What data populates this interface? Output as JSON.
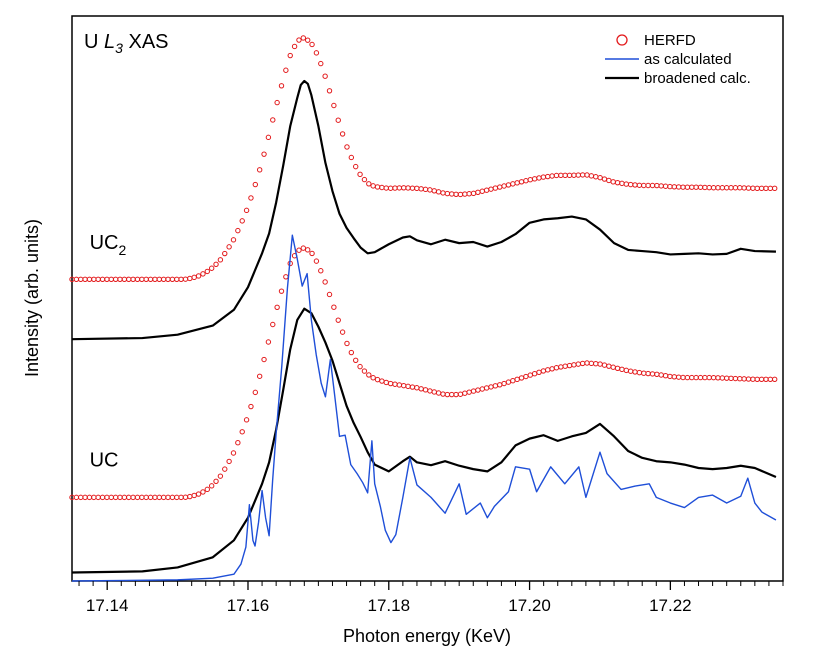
{
  "chart_data": {
    "type": "line",
    "title": {
      "prefix": "U ",
      "italic": "L",
      "sub": "3",
      "suffix": " XAS"
    },
    "xlabel": "Photon energy (KeV)",
    "ylabel": "Intensity (arb. units)",
    "xlim": [
      17.135,
      17.236
    ],
    "ylim": [
      0,
      10
    ],
    "x_ticks": [
      17.14,
      17.16,
      17.18,
      17.2,
      17.22
    ],
    "x_tick_labels": [
      "17.14",
      "17.16",
      "17.18",
      "17.20",
      "17.22"
    ],
    "minor_tick_step": 0.002,
    "y_ticks_shown": false,
    "grid": false,
    "legend": {
      "position": "top-right",
      "entries": [
        {
          "label": "HERFD",
          "style": "open-circle",
          "color": "#e31a1c"
        },
        {
          "label": "as calculated",
          "style": "line",
          "color": "#1f4fd8"
        },
        {
          "label": "broadened calc.",
          "style": "line",
          "color": "#000000"
        }
      ]
    },
    "annotations": [
      {
        "id": "uc2",
        "text": "UC",
        "sub": "2",
        "x": 17.1375,
        "y": 6.0
      },
      {
        "id": "uc",
        "text": "UC",
        "sub": "",
        "x": 17.1375,
        "y": 2.15
      }
    ],
    "series": [
      {
        "name": "HERFD",
        "group": "UC2",
        "style": "open-circle",
        "color": "#e31a1c",
        "x": [
          17.135,
          17.151,
          17.152,
          17.153,
          17.154,
          17.155,
          17.156,
          17.157,
          17.158,
          17.159,
          17.16,
          17.161,
          17.162,
          17.163,
          17.164,
          17.165,
          17.166,
          17.167,
          17.168,
          17.169,
          17.17,
          17.171,
          17.172,
          17.173,
          17.174,
          17.175,
          17.176,
          17.177,
          17.178,
          17.18,
          17.182,
          17.184,
          17.186,
          17.188,
          17.19,
          17.192,
          17.194,
          17.196,
          17.198,
          17.2,
          17.202,
          17.204,
          17.206,
          17.208,
          17.21,
          17.212,
          17.214,
          17.216,
          17.218,
          17.22,
          17.222,
          17.224,
          17.226,
          17.228,
          17.23,
          17.232,
          17.235
        ],
        "y": [
          5.34,
          5.34,
          5.36,
          5.4,
          5.46,
          5.55,
          5.67,
          5.85,
          6.05,
          6.32,
          6.62,
          7.0,
          7.42,
          7.9,
          8.4,
          8.88,
          9.3,
          9.56,
          9.62,
          9.52,
          9.28,
          8.92,
          8.5,
          8.08,
          7.7,
          7.4,
          7.18,
          7.04,
          6.98,
          6.95,
          6.96,
          6.95,
          6.92,
          6.86,
          6.84,
          6.86,
          6.92,
          6.98,
          7.04,
          7.1,
          7.15,
          7.18,
          7.18,
          7.19,
          7.14,
          7.06,
          7.02,
          7.0,
          7.0,
          6.98,
          6.97,
          6.97,
          6.96,
          6.96,
          6.96,
          6.95,
          6.95
        ]
      },
      {
        "name": "broadened calc.",
        "group": "UC2",
        "style": "line",
        "color": "#000000",
        "x": [
          17.135,
          17.145,
          17.15,
          17.155,
          17.158,
          17.16,
          17.161,
          17.162,
          17.163,
          17.164,
          17.165,
          17.166,
          17.167,
          17.1675,
          17.168,
          17.1685,
          17.169,
          17.17,
          17.171,
          17.172,
          17.173,
          17.174,
          17.175,
          17.176,
          17.177,
          17.178,
          17.18,
          17.182,
          17.183,
          17.184,
          17.186,
          17.188,
          17.19,
          17.192,
          17.194,
          17.196,
          17.198,
          17.2,
          17.202,
          17.204,
          17.206,
          17.208,
          17.21,
          17.212,
          17.214,
          17.216,
          17.218,
          17.22,
          17.222,
          17.224,
          17.226,
          17.228,
          17.23,
          17.232,
          17.235
        ],
        "y": [
          4.28,
          4.3,
          4.36,
          4.52,
          4.8,
          5.2,
          5.5,
          5.8,
          6.15,
          6.7,
          7.35,
          8.05,
          8.55,
          8.78,
          8.85,
          8.8,
          8.6,
          8.05,
          7.4,
          6.9,
          6.5,
          6.25,
          6.07,
          5.9,
          5.8,
          5.82,
          5.96,
          6.08,
          6.1,
          6.03,
          5.96,
          6.04,
          5.98,
          6.0,
          5.92,
          6.0,
          6.14,
          6.34,
          6.4,
          6.42,
          6.45,
          6.4,
          6.22,
          5.98,
          5.86,
          5.84,
          5.82,
          5.78,
          5.79,
          5.8,
          5.78,
          5.79,
          5.88,
          5.84,
          5.83
        ]
      },
      {
        "name": "HERFD",
        "group": "UC",
        "style": "open-circle",
        "color": "#e31a1c",
        "x": [
          17.135,
          17.151,
          17.152,
          17.153,
          17.154,
          17.155,
          17.156,
          17.157,
          17.158,
          17.159,
          17.16,
          17.161,
          17.162,
          17.163,
          17.164,
          17.165,
          17.166,
          17.167,
          17.168,
          17.169,
          17.17,
          17.171,
          17.172,
          17.173,
          17.174,
          17.175,
          17.176,
          17.177,
          17.178,
          17.18,
          17.182,
          17.184,
          17.186,
          17.188,
          17.19,
          17.192,
          17.194,
          17.196,
          17.198,
          17.2,
          17.202,
          17.204,
          17.206,
          17.208,
          17.21,
          17.212,
          17.214,
          17.216,
          17.218,
          17.22,
          17.222,
          17.224,
          17.226,
          17.228,
          17.23,
          17.232,
          17.235
        ],
        "y": [
          1.48,
          1.48,
          1.5,
          1.54,
          1.6,
          1.7,
          1.84,
          2.04,
          2.28,
          2.58,
          2.92,
          3.32,
          3.78,
          4.28,
          4.78,
          5.24,
          5.62,
          5.84,
          5.9,
          5.82,
          5.6,
          5.28,
          4.92,
          4.55,
          4.22,
          3.96,
          3.78,
          3.66,
          3.58,
          3.5,
          3.46,
          3.42,
          3.36,
          3.3,
          3.3,
          3.36,
          3.42,
          3.48,
          3.56,
          3.64,
          3.72,
          3.78,
          3.82,
          3.86,
          3.84,
          3.78,
          3.72,
          3.68,
          3.66,
          3.62,
          3.6,
          3.6,
          3.6,
          3.59,
          3.58,
          3.57,
          3.57
        ]
      },
      {
        "name": "broadened calc.",
        "group": "UC",
        "style": "line",
        "color": "#000000",
        "x": [
          17.135,
          17.145,
          17.15,
          17.155,
          17.158,
          17.16,
          17.161,
          17.162,
          17.163,
          17.164,
          17.165,
          17.166,
          17.167,
          17.168,
          17.169,
          17.17,
          17.171,
          17.172,
          17.173,
          17.174,
          17.175,
          17.176,
          17.177,
          17.178,
          17.18,
          17.182,
          17.183,
          17.184,
          17.186,
          17.188,
          17.19,
          17.192,
          17.194,
          17.196,
          17.198,
          17.2,
          17.202,
          17.204,
          17.206,
          17.208,
          17.21,
          17.212,
          17.214,
          17.216,
          17.218,
          17.22,
          17.222,
          17.224,
          17.226,
          17.228,
          17.23,
          17.232,
          17.235
        ],
        "y": [
          0.15,
          0.17,
          0.24,
          0.42,
          0.72,
          1.12,
          1.42,
          1.72,
          2.1,
          2.68,
          3.38,
          4.1,
          4.62,
          4.82,
          4.74,
          4.5,
          4.22,
          3.9,
          3.5,
          3.1,
          2.8,
          2.55,
          2.28,
          2.06,
          1.94,
          2.12,
          2.2,
          2.1,
          2.05,
          2.12,
          2.04,
          1.98,
          1.94,
          2.1,
          2.4,
          2.52,
          2.58,
          2.48,
          2.56,
          2.62,
          2.78,
          2.56,
          2.3,
          2.18,
          2.12,
          2.1,
          2.06,
          2.0,
          1.98,
          2.0,
          2.04,
          2.0,
          1.84
        ]
      },
      {
        "name": "as calculated",
        "group": "UC",
        "style": "line",
        "color": "#1f4fd8",
        "x": [
          17.135,
          17.15,
          17.155,
          17.158,
          17.159,
          17.1597,
          17.1602,
          17.1607,
          17.161,
          17.1615,
          17.162,
          17.1625,
          17.163,
          17.1635,
          17.164,
          17.1648,
          17.1656,
          17.1663,
          17.167,
          17.1677,
          17.1684,
          17.169,
          17.1697,
          17.1704,
          17.171,
          17.1717,
          17.1723,
          17.173,
          17.1738,
          17.1746,
          17.1755,
          17.1763,
          17.177,
          17.1776,
          17.178,
          17.1788,
          17.1795,
          17.1803,
          17.181,
          17.182,
          17.183,
          17.184,
          17.186,
          17.188,
          17.19,
          17.191,
          17.193,
          17.194,
          17.195,
          17.197,
          17.198,
          17.2,
          17.201,
          17.203,
          17.205,
          17.207,
          17.208,
          17.21,
          17.211,
          17.213,
          17.215,
          17.217,
          17.218,
          17.22,
          17.222,
          17.224,
          17.226,
          17.228,
          17.23,
          17.231,
          17.232,
          17.233,
          17.235
        ],
        "y": [
          0.0,
          0.02,
          0.05,
          0.12,
          0.3,
          0.6,
          1.35,
          0.72,
          0.62,
          1.04,
          1.6,
          1.12,
          0.8,
          1.78,
          2.62,
          3.8,
          5.18,
          6.12,
          5.7,
          5.22,
          5.44,
          4.62,
          4.0,
          3.5,
          3.26,
          3.92,
          3.3,
          2.56,
          2.58,
          2.06,
          1.9,
          1.74,
          1.56,
          2.48,
          1.72,
          1.32,
          0.9,
          0.68,
          0.82,
          1.48,
          2.18,
          1.7,
          1.48,
          1.2,
          1.72,
          1.18,
          1.38,
          1.12,
          1.32,
          1.58,
          2.02,
          1.98,
          1.58,
          2.02,
          1.72,
          2.02,
          1.48,
          2.28,
          1.9,
          1.62,
          1.68,
          1.72,
          1.48,
          1.38,
          1.3,
          1.48,
          1.52,
          1.38,
          1.5,
          1.82,
          1.38,
          1.22,
          1.08
        ]
      }
    ]
  }
}
